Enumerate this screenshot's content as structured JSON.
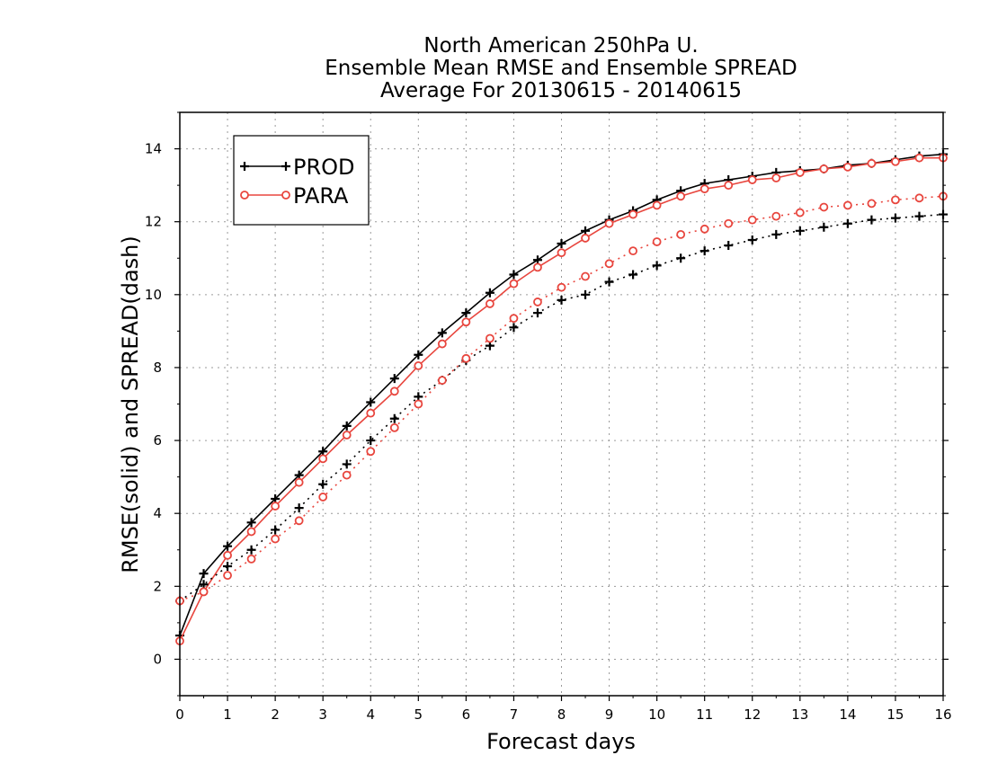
{
  "chart_data": {
    "type": "line",
    "title": [
      "North American 250hPa U.",
      "Ensemble Mean RMSE and Ensemble SPREAD",
      "Average For 20130615 - 20140615"
    ],
    "xlabel": "Forecast days",
    "ylabel": "RMSE(solid) and SPREAD(dash)",
    "xlim": [
      0,
      16
    ],
    "ylim": [
      -1,
      15
    ],
    "xticks": [
      0,
      1,
      2,
      3,
      4,
      5,
      6,
      7,
      8,
      9,
      10,
      11,
      12,
      13,
      14,
      15,
      16
    ],
    "yticks": [
      0,
      2,
      4,
      6,
      8,
      10,
      12,
      14
    ],
    "grid": true,
    "legend_position": "top-left",
    "x": [
      0,
      0.5,
      1,
      1.5,
      2,
      2.5,
      3,
      3.5,
      4,
      4.5,
      5,
      5.5,
      6,
      6.5,
      7,
      7.5,
      8,
      8.5,
      9,
      9.5,
      10,
      10.5,
      11,
      11.5,
      12,
      12.5,
      13,
      13.5,
      14,
      14.5,
      15,
      15.5,
      16
    ],
    "series": [
      {
        "name": "PROD",
        "kind": "rmse",
        "style": "solid",
        "marker": "plus",
        "color": "#000000",
        "values": [
          0.65,
          2.35,
          3.1,
          3.75,
          4.4,
          5.05,
          5.7,
          6.4,
          7.05,
          7.7,
          8.35,
          8.95,
          9.5,
          10.05,
          10.55,
          10.95,
          11.4,
          11.75,
          12.05,
          12.3,
          12.6,
          12.85,
          13.05,
          13.15,
          13.25,
          13.35,
          13.4,
          13.45,
          13.55,
          13.6,
          13.7,
          13.8,
          13.85
        ]
      },
      {
        "name": "PARA",
        "kind": "rmse",
        "style": "solid",
        "marker": "circle",
        "color": "#e8463e",
        "values": [
          0.5,
          1.85,
          2.85,
          3.5,
          4.2,
          4.85,
          5.5,
          6.15,
          6.75,
          7.35,
          8.05,
          8.65,
          9.25,
          9.75,
          10.3,
          10.75,
          11.15,
          11.55,
          11.95,
          12.2,
          12.45,
          12.7,
          12.9,
          13.0,
          13.15,
          13.2,
          13.35,
          13.45,
          13.5,
          13.6,
          13.65,
          13.75,
          13.75
        ]
      },
      {
        "name": "PROD",
        "kind": "spread",
        "style": "dotted",
        "marker": "plus",
        "color": "#000000",
        "values": [
          1.6,
          2.05,
          2.55,
          3.0,
          3.55,
          4.15,
          4.8,
          5.35,
          6.0,
          6.6,
          7.2,
          7.65,
          8.2,
          8.6,
          9.1,
          9.5,
          9.85,
          10.0,
          10.35,
          10.55,
          10.8,
          11.0,
          11.2,
          11.35,
          11.5,
          11.65,
          11.75,
          11.85,
          11.95,
          12.05,
          12.1,
          12.15,
          12.2
        ]
      },
      {
        "name": "PARA",
        "kind": "spread",
        "style": "dotted",
        "marker": "circle",
        "color": "#e8463e",
        "values": [
          1.6,
          1.85,
          2.3,
          2.75,
          3.3,
          3.8,
          4.45,
          5.05,
          5.7,
          6.35,
          7.0,
          7.65,
          8.25,
          8.8,
          9.35,
          9.8,
          10.2,
          10.5,
          10.85,
          11.2,
          11.45,
          11.65,
          11.8,
          11.95,
          12.05,
          12.15,
          12.25,
          12.4,
          12.45,
          12.5,
          12.6,
          12.65,
          12.7
        ]
      }
    ],
    "legend": [
      {
        "label": "PROD",
        "marker": "plus",
        "color": "#000000"
      },
      {
        "label": "PARA",
        "marker": "circle",
        "color": "#e8463e"
      }
    ]
  }
}
